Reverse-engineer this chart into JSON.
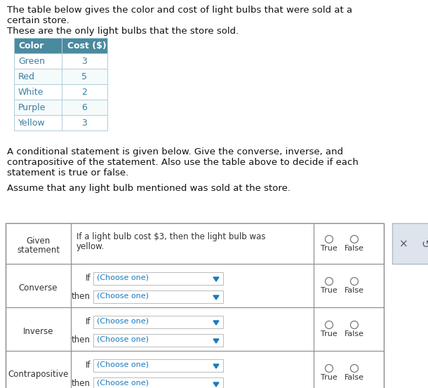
{
  "bg_color": "#ffffff",
  "intro_text_line1": "The table below gives the color and cost of light bulbs that were sold at a",
  "intro_text_line2": "certain store.",
  "intro_text_line3": "These are the only light bulbs that the store sold.",
  "table1_header": [
    "Color",
    "Cost ($)"
  ],
  "table1_header_bg": "#4a8a9f",
  "table1_header_color": "#ffffff",
  "table1_row_bg_even": "#ffffff",
  "table1_row_bg_odd": "#f5fafb",
  "table1_border": "#b0cdd8",
  "table1_text_color": "#3a7fa0",
  "table1_data": [
    [
      "Green",
      "3"
    ],
    [
      "Red",
      "5"
    ],
    [
      "White",
      "2"
    ],
    [
      "Purple",
      "6"
    ],
    [
      "Yellow",
      "3"
    ]
  ],
  "mid_text_line1": "A conditional statement is given below. Give the converse, inverse, and",
  "mid_text_line2": "contrapositive of the statement. Also use the table above to decide if each",
  "mid_text_line3": "statement is true or false.",
  "assume_text": "Assume that any light bulb mentioned was sold at the store.",
  "given_statement_line1": "If a light bulb cost $3, then the light bulb was",
  "given_statement_line2": "yellow.",
  "row_labels": [
    "Given\nstatement",
    "Converse",
    "Inverse",
    "Contrapositive"
  ],
  "if_label": "If",
  "then_label": "then",
  "choose_one_text": "(Choose one)",
  "true_label": "True",
  "false_label": "False",
  "table2_border": "#888888",
  "table2_text_color": "#333333",
  "dropdown_border": "#bbbbbb",
  "dropdown_bg": "#ffffff",
  "dropdown_text_color": "#1a7abf",
  "dropdown_arrow_color": "#1a7abf",
  "button_bg": "#dde4eb",
  "button_border": "#aabbcc",
  "button_text_color": "#555566"
}
